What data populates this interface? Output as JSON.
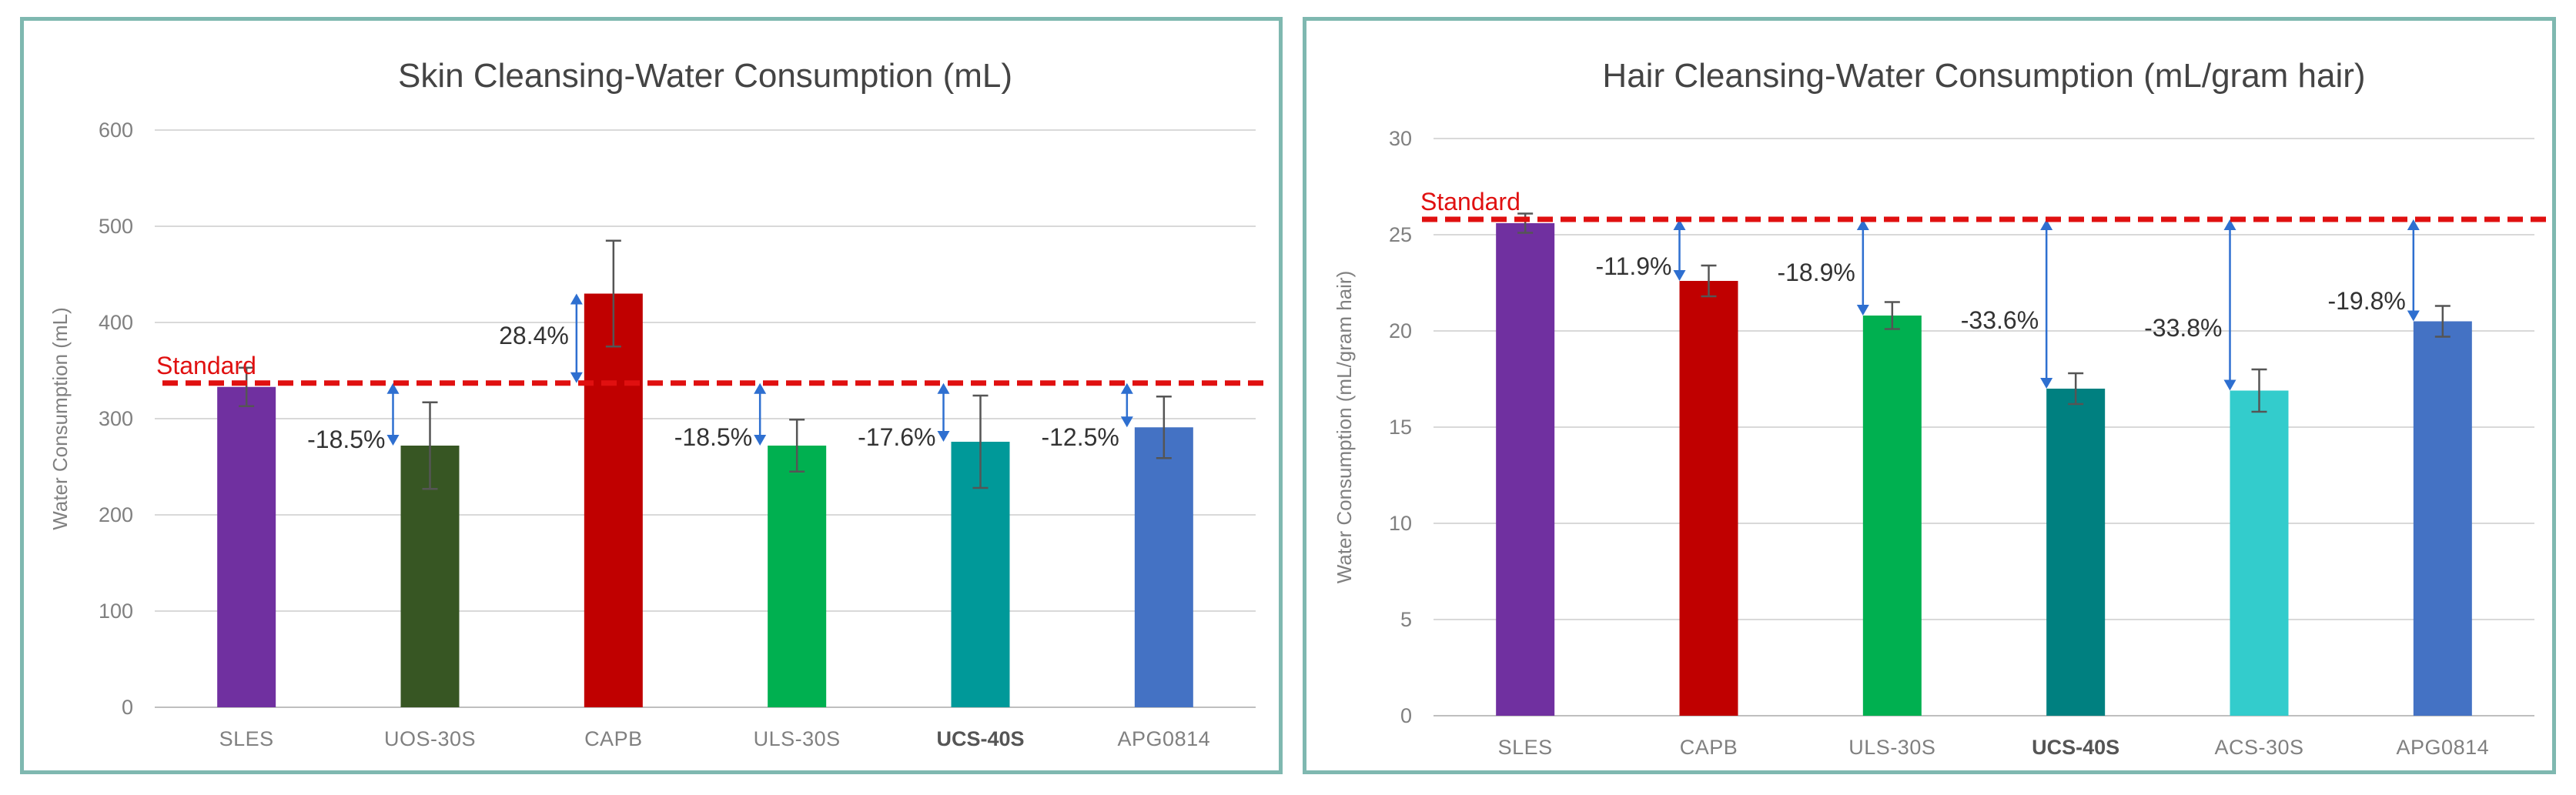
{
  "chart_data": [
    {
      "type": "bar",
      "title": "Skin Cleansing-Water Consumption (mL)",
      "ylabel": "Water Consumption  (mL)",
      "ylim": [
        0,
        600
      ],
      "yticks": [
        0,
        100,
        200,
        300,
        400,
        500,
        600
      ],
      "categories": [
        "SLES",
        "UOS-30S",
        "CAPB",
        "ULS-30S",
        "UCS-40S",
        "APG0814"
      ],
      "values": [
        333,
        272,
        430,
        272,
        276,
        291
      ],
      "error": [
        20,
        45,
        55,
        27,
        48,
        32
      ],
      "colors": [
        "#7030a0",
        "#375623",
        "#c00000",
        "#00b050",
        "#009999",
        "#4472c4"
      ],
      "bold_category": "UCS-40S",
      "standard_label": "Standard",
      "standard_value": 337,
      "annotations": [
        "",
        "-18.5%",
        "28.4%",
        "-18.5%",
        "-17.6%",
        "-12.5%"
      ],
      "grid": true
    },
    {
      "type": "bar",
      "title": "Hair Cleansing-Water Consumption (mL/gram hair)",
      "ylabel": "Water Consumption  (mL/gram hair)",
      "ylim": [
        0,
        30
      ],
      "yticks": [
        0,
        5,
        10,
        15,
        20,
        25,
        30
      ],
      "categories": [
        "SLES",
        "CAPB",
        "ULS-30S",
        "UCS-40S",
        "ACS-30S",
        "APG0814"
      ],
      "values": [
        25.6,
        22.6,
        20.8,
        17.0,
        16.9,
        20.5
      ],
      "error": [
        0.5,
        0.8,
        0.7,
        0.8,
        1.1,
        0.8
      ],
      "colors": [
        "#7030a0",
        "#c00000",
        "#00b050",
        "#008080",
        "#33cccc",
        "#4472c4"
      ],
      "bold_category": "UCS-40S",
      "standard_label": "Standard",
      "standard_value": 25.8,
      "annotations": [
        "",
        "-11.9%",
        "-18.9%",
        "-33.6%",
        "-33.8%",
        "-19.8%"
      ],
      "grid": true
    }
  ]
}
